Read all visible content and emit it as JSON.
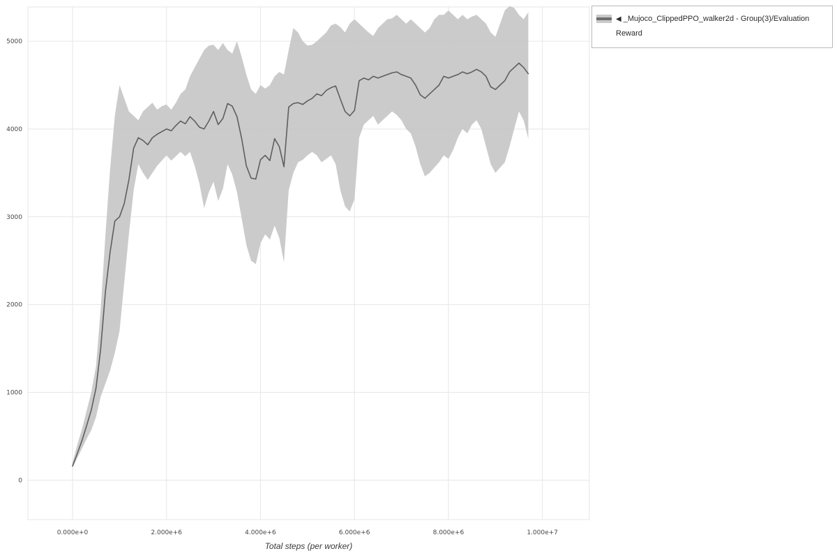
{
  "legend": {
    "collapse_icon": "◀",
    "label": "_Mujoco_ClippedPPO_walker2d - Group(3)/Evaluation Reward"
  },
  "chart_data": {
    "type": "line",
    "title": "",
    "xlabel": "Total steps (per worker)",
    "ylabel": "",
    "x_unit": 1000000,
    "xlim_millions": [
      -0.95,
      11.0
    ],
    "ylim": [
      -450,
      5390
    ],
    "grid": true,
    "legend_position": "top-right-outside",
    "colors": {
      "line": "#5e5e5e",
      "band": "#c8c8c8",
      "grid": "#e6e6e6",
      "tick": "#454545"
    },
    "xticks": [
      {
        "v": 0,
        "label": "0.000e+0"
      },
      {
        "v": 2,
        "label": "2.000e+6"
      },
      {
        "v": 4,
        "label": "4.000e+6"
      },
      {
        "v": 6,
        "label": "6.000e+6"
      },
      {
        "v": 8,
        "label": "8.000e+6"
      },
      {
        "v": 10,
        "label": "1.000e+7"
      }
    ],
    "yticks": [
      {
        "v": 0,
        "label": "0"
      },
      {
        "v": 1000,
        "label": "1000"
      },
      {
        "v": 2000,
        "label": "2000"
      },
      {
        "v": 3000,
        "label": "3000"
      },
      {
        "v": 4000,
        "label": "4000"
      },
      {
        "v": 5000,
        "label": "5000"
      }
    ],
    "series": [
      {
        "name": "_Mujoco_ClippedPPO_walker2d - Group(3)/Evaluation Reward",
        "x_millions": [
          0.0,
          0.1,
          0.2,
          0.3,
          0.4,
          0.5,
          0.6,
          0.7,
          0.8,
          0.9,
          1.0,
          1.1,
          1.2,
          1.3,
          1.4,
          1.5,
          1.6,
          1.7,
          1.8,
          1.9,
          2.0,
          2.1,
          2.2,
          2.3,
          2.4,
          2.5,
          2.6,
          2.7,
          2.8,
          2.9,
          3.0,
          3.1,
          3.2,
          3.3,
          3.4,
          3.5,
          3.6,
          3.7,
          3.8,
          3.9,
          4.0,
          4.1,
          4.2,
          4.3,
          4.4,
          4.5,
          4.6,
          4.7,
          4.8,
          4.9,
          5.0,
          5.1,
          5.2,
          5.3,
          5.4,
          5.5,
          5.6,
          5.7,
          5.8,
          5.9,
          6.0,
          6.1,
          6.2,
          6.3,
          6.4,
          6.5,
          6.6,
          6.7,
          6.8,
          6.9,
          7.0,
          7.1,
          7.2,
          7.3,
          7.4,
          7.5,
          7.6,
          7.7,
          7.8,
          7.9,
          8.0,
          8.1,
          8.2,
          8.3,
          8.4,
          8.5,
          8.6,
          8.7,
          8.8,
          8.9,
          9.0,
          9.1,
          9.2,
          9.3,
          9.4,
          9.5,
          9.6,
          9.7
        ],
        "mean": [
          160,
          300,
          450,
          620,
          800,
          1050,
          1500,
          2150,
          2600,
          2950,
          3000,
          3150,
          3420,
          3780,
          3900,
          3870,
          3820,
          3900,
          3940,
          3970,
          4000,
          3980,
          4040,
          4090,
          4060,
          4140,
          4090,
          4020,
          4000,
          4090,
          4200,
          4050,
          4120,
          4290,
          4260,
          4140,
          3890,
          3580,
          3440,
          3430,
          3650,
          3700,
          3640,
          3890,
          3800,
          3570,
          4250,
          4290,
          4300,
          4280,
          4320,
          4350,
          4400,
          4380,
          4440,
          4470,
          4490,
          4340,
          4200,
          4150,
          4210,
          4550,
          4580,
          4560,
          4600,
          4580,
          4600,
          4620,
          4640,
          4650,
          4620,
          4600,
          4580,
          4500,
          4390,
          4350,
          4400,
          4450,
          4500,
          4600,
          4580,
          4600,
          4620,
          4650,
          4630,
          4650,
          4680,
          4650,
          4600,
          4480,
          4450,
          4500,
          4550,
          4650,
          4700,
          4750,
          4700,
          4630
        ],
        "lower": [
          140,
          250,
          360,
          470,
          570,
          720,
          950,
          1100,
          1250,
          1450,
          1700,
          2250,
          2800,
          3300,
          3600,
          3500,
          3420,
          3500,
          3580,
          3640,
          3700,
          3640,
          3690,
          3740,
          3690,
          3740,
          3580,
          3380,
          3100,
          3280,
          3400,
          3180,
          3320,
          3600,
          3480,
          3280,
          2980,
          2680,
          2500,
          2460,
          2700,
          2800,
          2740,
          2900,
          2760,
          2480,
          3300,
          3500,
          3620,
          3650,
          3700,
          3740,
          3700,
          3620,
          3660,
          3700,
          3600,
          3300,
          3120,
          3060,
          3200,
          3900,
          4050,
          4100,
          4150,
          4050,
          4100,
          4150,
          4200,
          4160,
          4100,
          4000,
          3950,
          3800,
          3600,
          3460,
          3500,
          3560,
          3620,
          3700,
          3660,
          3760,
          3900,
          4000,
          3950,
          4050,
          4100,
          4000,
          3800,
          3600,
          3500,
          3560,
          3620,
          3800,
          4000,
          4200,
          4100,
          3890
        ],
        "upper": [
          200,
          400,
          580,
          790,
          1000,
          1300,
          1950,
          2800,
          3550,
          4150,
          4500,
          4350,
          4200,
          4150,
          4100,
          4200,
          4250,
          4300,
          4220,
          4260,
          4280,
          4220,
          4300,
          4400,
          4450,
          4600,
          4700,
          4800,
          4900,
          4950,
          4960,
          4900,
          4980,
          4900,
          4860,
          5000,
          4820,
          4620,
          4450,
          4400,
          4500,
          4460,
          4500,
          4600,
          4650,
          4620,
          4900,
          5150,
          5100,
          5000,
          4950,
          4960,
          5000,
          5050,
          5100,
          5180,
          5200,
          5160,
          5100,
          5200,
          5250,
          5200,
          5150,
          5100,
          5060,
          5150,
          5200,
          5250,
          5260,
          5300,
          5250,
          5200,
          5250,
          5200,
          5150,
          5100,
          5150,
          5250,
          5300,
          5300,
          5350,
          5300,
          5250,
          5300,
          5250,
          5280,
          5300,
          5250,
          5200,
          5100,
          5050,
          5200,
          5350,
          5400,
          5380,
          5300,
          5250,
          5330
        ]
      }
    ]
  }
}
